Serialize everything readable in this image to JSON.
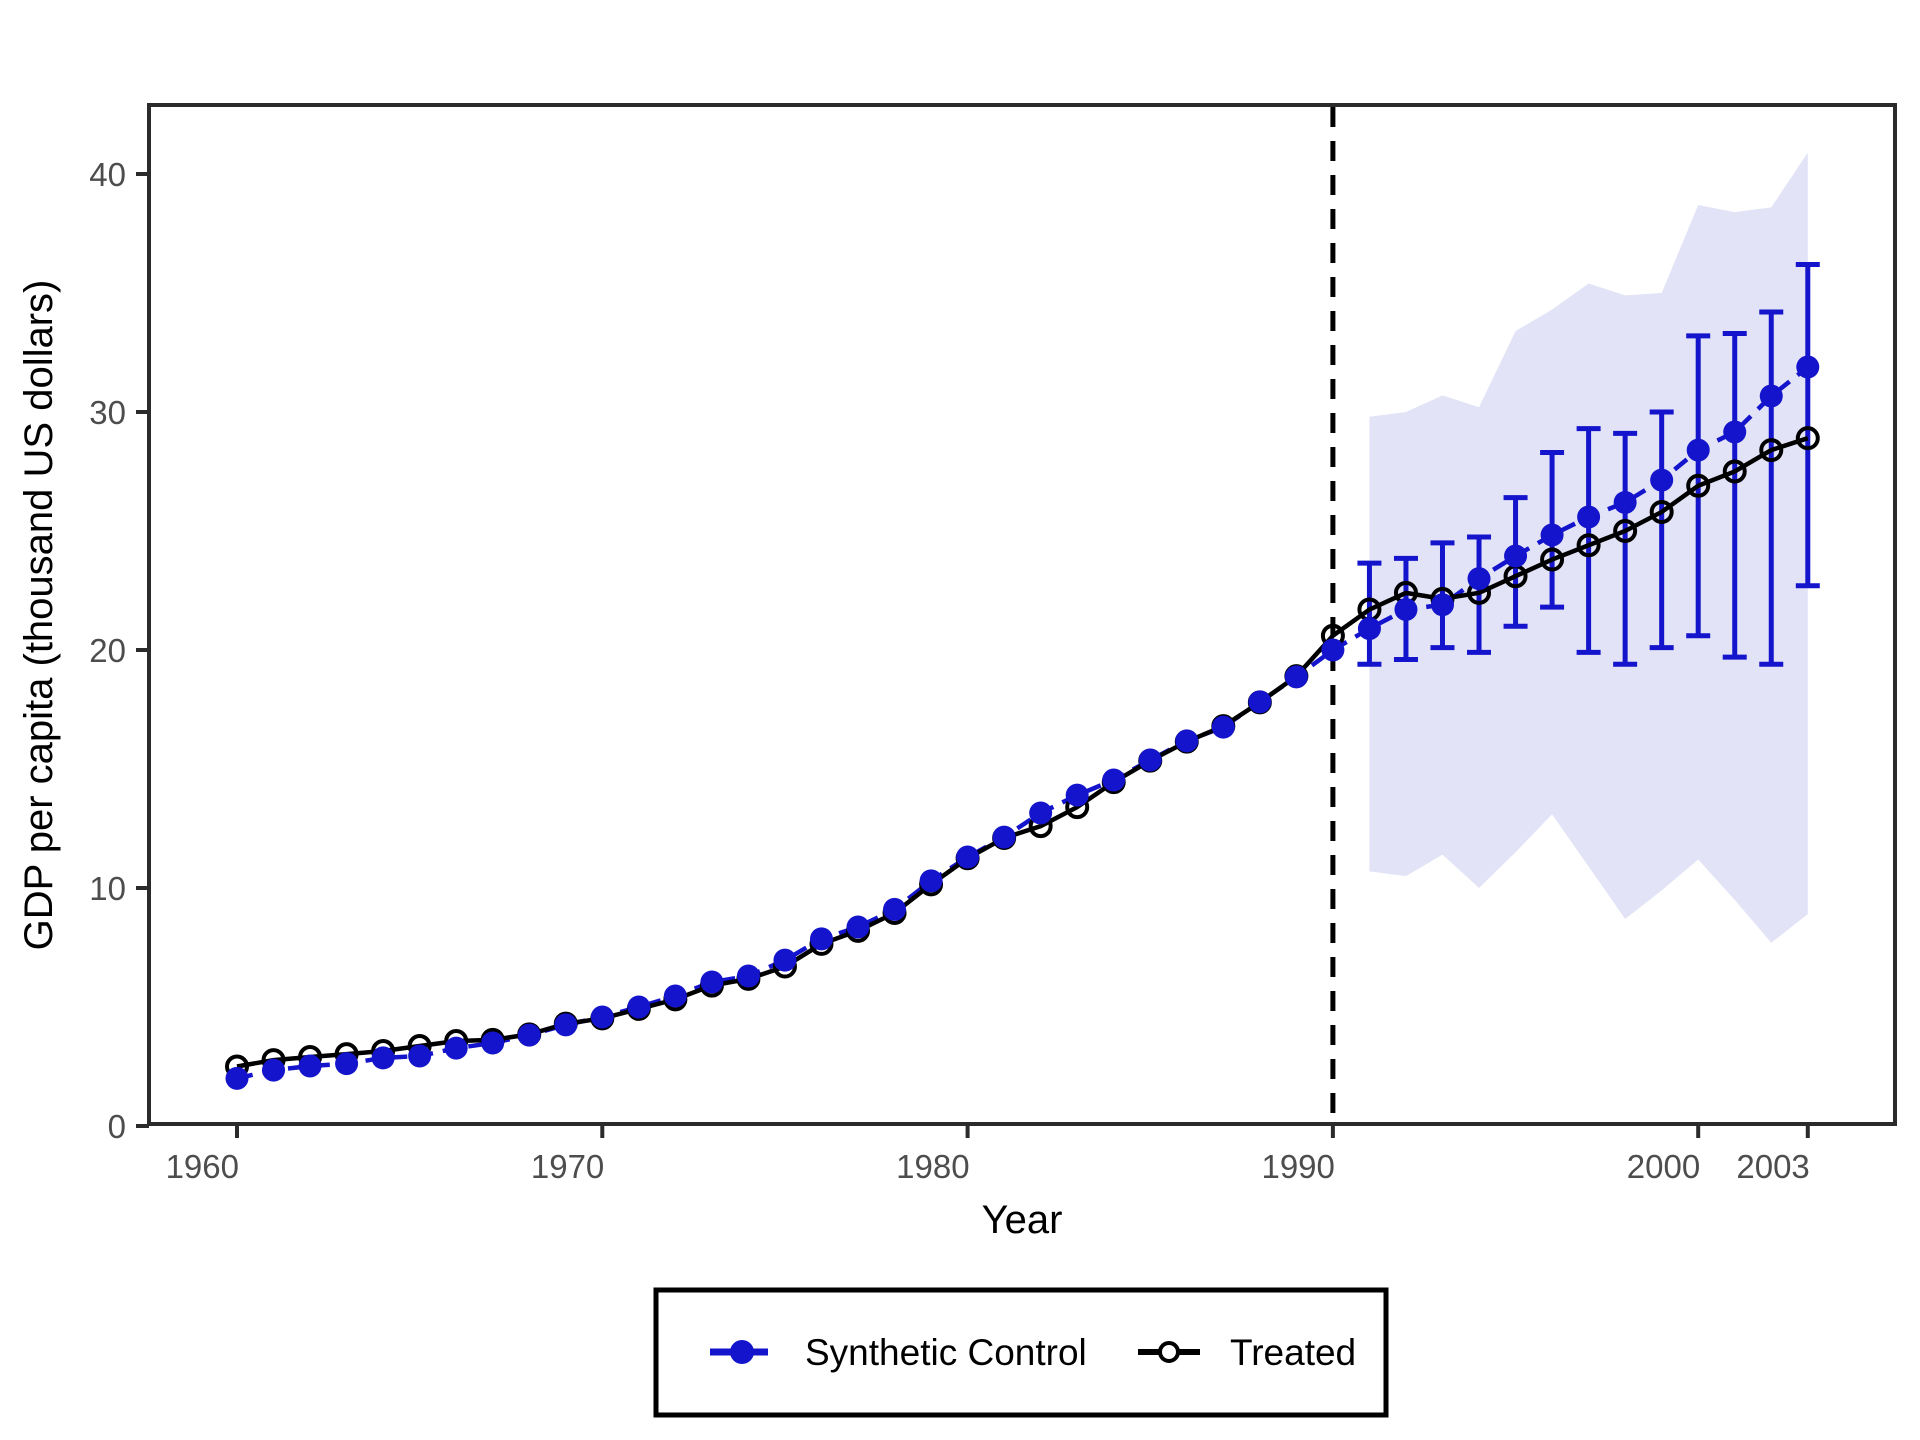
{
  "chart_data": {
    "type": "line",
    "title": "",
    "xlabel": "Year",
    "ylabel": "GDP per capita (thousand US dollars)",
    "x_ticks": [
      1960,
      1970,
      1980,
      1990,
      2000,
      2003
    ],
    "y_ticks": [
      0,
      10,
      20,
      30,
      40
    ],
    "xlim": [
      1957.6,
      2005.4
    ],
    "ylim": [
      -0.1,
      42.9
    ],
    "grid": "off",
    "treatment_line_year": 1990,
    "years": [
      1960,
      1961,
      1962,
      1963,
      1964,
      1965,
      1966,
      1967,
      1968,
      1969,
      1970,
      1971,
      1972,
      1973,
      1974,
      1975,
      1976,
      1977,
      1978,
      1979,
      1980,
      1981,
      1982,
      1983,
      1984,
      1985,
      1986,
      1987,
      1988,
      1989,
      1990,
      1991,
      1992,
      1993,
      1994,
      1995,
      1996,
      1997,
      1998,
      1999,
      2000,
      2001,
      2002,
      2003
    ],
    "series": [
      {
        "name": "Synthetic Control",
        "color": "#1414cc",
        "line_style": "dashed",
        "marker": "filled-circle",
        "values": [
          2.0,
          2.35,
          2.52,
          2.62,
          2.86,
          2.94,
          3.27,
          3.49,
          3.82,
          4.25,
          4.58,
          5.0,
          5.46,
          6.05,
          6.3,
          6.97,
          7.86,
          8.36,
          9.1,
          10.3,
          11.3,
          12.14,
          13.15,
          13.9,
          14.54,
          15.38,
          16.18,
          16.76,
          17.82,
          18.87,
          20.0,
          20.9,
          21.7,
          21.9,
          23.0,
          23.95,
          24.83,
          25.59,
          26.2,
          27.14,
          28.4,
          29.16,
          30.67,
          31.89
        ]
      },
      {
        "name": "Treated",
        "color": "#000000",
        "line_style": "solid",
        "marker": "open-circle",
        "values": [
          2.5,
          2.77,
          2.9,
          3.02,
          3.15,
          3.36,
          3.57,
          3.62,
          3.85,
          4.3,
          4.52,
          4.92,
          5.32,
          5.9,
          6.18,
          6.7,
          7.65,
          8.2,
          8.95,
          10.15,
          11.25,
          12.1,
          12.6,
          13.4,
          14.45,
          15.35,
          16.15,
          16.8,
          17.8,
          18.9,
          20.6,
          21.7,
          22.4,
          22.15,
          22.4,
          23.1,
          23.8,
          24.4,
          25.0,
          25.8,
          26.9,
          27.5,
          28.4,
          28.9
        ]
      }
    ],
    "error_bars": {
      "series": "Synthetic Control",
      "color": "#1414cc",
      "years": [
        1991,
        1992,
        1993,
        1994,
        1995,
        1996,
        1997,
        1998,
        1999,
        2000,
        2001,
        2002,
        2003
      ],
      "lower": [
        19.4,
        19.6,
        20.1,
        19.9,
        21.0,
        21.8,
        19.9,
        19.4,
        20.1,
        20.6,
        19.7,
        19.4,
        22.7
      ],
      "upper": [
        23.65,
        23.85,
        24.5,
        24.75,
        26.4,
        28.3,
        29.3,
        29.1,
        30.0,
        33.2,
        33.3,
        34.2,
        36.2
      ]
    },
    "band": {
      "color": "#e2e3f6",
      "years": [
        1991,
        1992,
        1993,
        1994,
        1995,
        1996,
        1997,
        1998,
        1999,
        2000,
        2001,
        2002,
        2003
      ],
      "lower": [
        10.7,
        10.5,
        11.4,
        10.0,
        11.5,
        13.1,
        10.9,
        8.7,
        9.9,
        11.2,
        9.5,
        7.7,
        8.9
      ],
      "upper": [
        29.8,
        30.0,
        30.7,
        30.2,
        33.4,
        34.3,
        35.4,
        34.9,
        35.0,
        38.7,
        38.4,
        38.6,
        40.9
      ]
    },
    "legend": {
      "position": "bottom-center",
      "items": [
        "Synthetic Control",
        "Treated"
      ]
    }
  },
  "colors": {
    "background": "#ffffff",
    "panel_border": "#2b2b2b",
    "axis_text": "#4d4d4d",
    "treatment_line": "#000000",
    "synthetic_blue": "#1414cc",
    "band_fill": "#e2e3f6"
  }
}
